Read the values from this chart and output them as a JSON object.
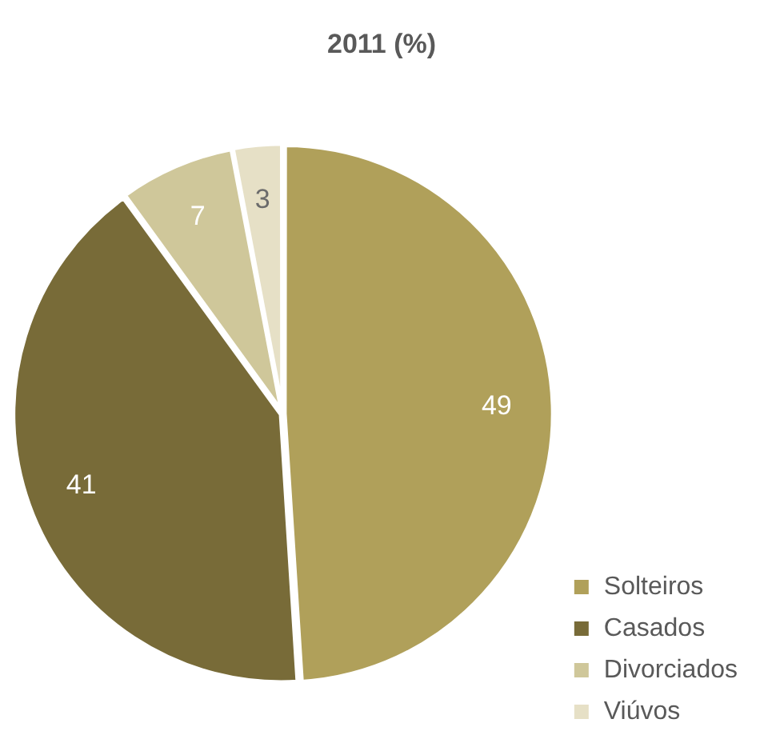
{
  "chart_data": {
    "type": "pie",
    "title": "2011 (%)",
    "categories": [
      "Solteiros",
      "Casados",
      "Divorciados",
      "Viúvos"
    ],
    "values": [
      49,
      41,
      7,
      3
    ],
    "colors": [
      "#b0a05a",
      "#786b38",
      "#cfc79a",
      "#e6e0c6"
    ],
    "data_labels": true,
    "legend": "bottom right"
  }
}
